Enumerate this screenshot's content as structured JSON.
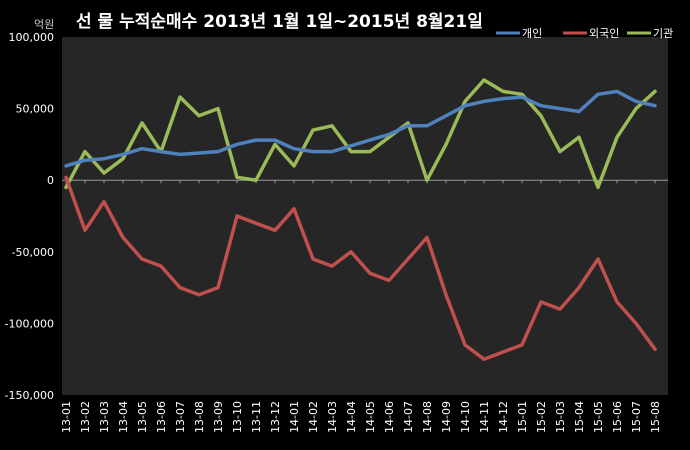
{
  "chart_data": {
    "type": "line",
    "title": "선 물 누적순매수 2013년 1월 1일~2015년 8월21일",
    "unit_label": "억원",
    "xlabel": "",
    "ylabel": "억원",
    "ylim": [
      -150000,
      100000
    ],
    "yticks": [
      {
        "value": 100000,
        "label": "100,000"
      },
      {
        "value": 50000,
        "label": "50,000"
      },
      {
        "value": 0,
        "label": "0"
      },
      {
        "value": -50000,
        "label": "-50,000"
      },
      {
        "value": -100000,
        "label": "-100,000"
      },
      {
        "value": -150000,
        "label": "-150,000"
      }
    ],
    "x": [
      "13-01",
      "13-02",
      "13-03",
      "13-04",
      "13-05",
      "13-06",
      "13-07",
      "13-08",
      "13-09",
      "13-10",
      "13-11",
      "13-12",
      "14-01",
      "14-02",
      "14-03",
      "14-04",
      "14-05",
      "14-06",
      "14-07",
      "14-08",
      "14-09",
      "14-10",
      "14-11",
      "14-12",
      "15-01",
      "15-02",
      "15-03",
      "15-04",
      "15-05",
      "15-06",
      "15-07",
      "15-08"
    ],
    "grid": false,
    "legend_position": "top-right",
    "series": [
      {
        "name": "개인",
        "color": "#4f81bd",
        "values": [
          10000,
          14000,
          15000,
          18000,
          22000,
          20000,
          18000,
          19000,
          20000,
          25000,
          28000,
          28000,
          22000,
          20000,
          20000,
          24000,
          28000,
          32000,
          38000,
          38000,
          45000,
          52000,
          55000,
          57000,
          58000,
          52000,
          50000,
          48000,
          60000,
          62000,
          55000,
          52000
        ]
      },
      {
        "name": "외국인",
        "color": "#c0504d",
        "values": [
          2000,
          -35000,
          -15000,
          -40000,
          -55000,
          -60000,
          -75000,
          -80000,
          -75000,
          -25000,
          -30000,
          -35000,
          -20000,
          -55000,
          -60000,
          -50000,
          -65000,
          -70000,
          -55000,
          -40000,
          -80000,
          -115000,
          -125000,
          -120000,
          -115000,
          -85000,
          -90000,
          -75000,
          -55000,
          -85000,
          -100000,
          -118000
        ]
      },
      {
        "name": "기관",
        "color": "#9bbb59",
        "values": [
          -5000,
          20000,
          5000,
          15000,
          40000,
          20000,
          58000,
          45000,
          50000,
          2000,
          0,
          25000,
          10000,
          35000,
          38000,
          20000,
          20000,
          30000,
          40000,
          0,
          25000,
          55000,
          70000,
          62000,
          60000,
          45000,
          20000,
          30000,
          -5000,
          30000,
          50000,
          62000
        ]
      }
    ]
  }
}
